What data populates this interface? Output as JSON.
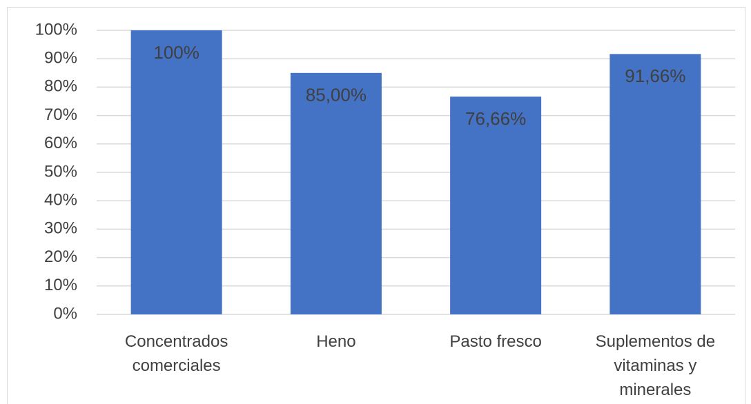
{
  "chart_data": {
    "type": "bar",
    "categories": [
      "Concentrados comerciales",
      "Heno",
      "Pasto fresco",
      "Suplementos de vitaminas y minerales"
    ],
    "values": [
      100,
      85,
      76.66,
      91.66
    ],
    "value_labels": [
      "100%",
      "85,00%",
      "76,66%",
      "91,66%"
    ],
    "color": "#4472c4",
    "ylim": [
      0,
      100
    ],
    "yticks": [
      {
        "value": 0,
        "label": "0%"
      },
      {
        "value": 10,
        "label": "10%"
      },
      {
        "value": 20,
        "label": "20%"
      },
      {
        "value": 30,
        "label": "30%"
      },
      {
        "value": 40,
        "label": "40%"
      },
      {
        "value": 50,
        "label": "50%"
      },
      {
        "value": 60,
        "label": "60%"
      },
      {
        "value": 70,
        "label": "70%"
      },
      {
        "value": 80,
        "label": "80%"
      },
      {
        "value": 90,
        "label": "90%"
      },
      {
        "value": 100,
        "label": "100%"
      }
    ],
    "grid": true
  }
}
